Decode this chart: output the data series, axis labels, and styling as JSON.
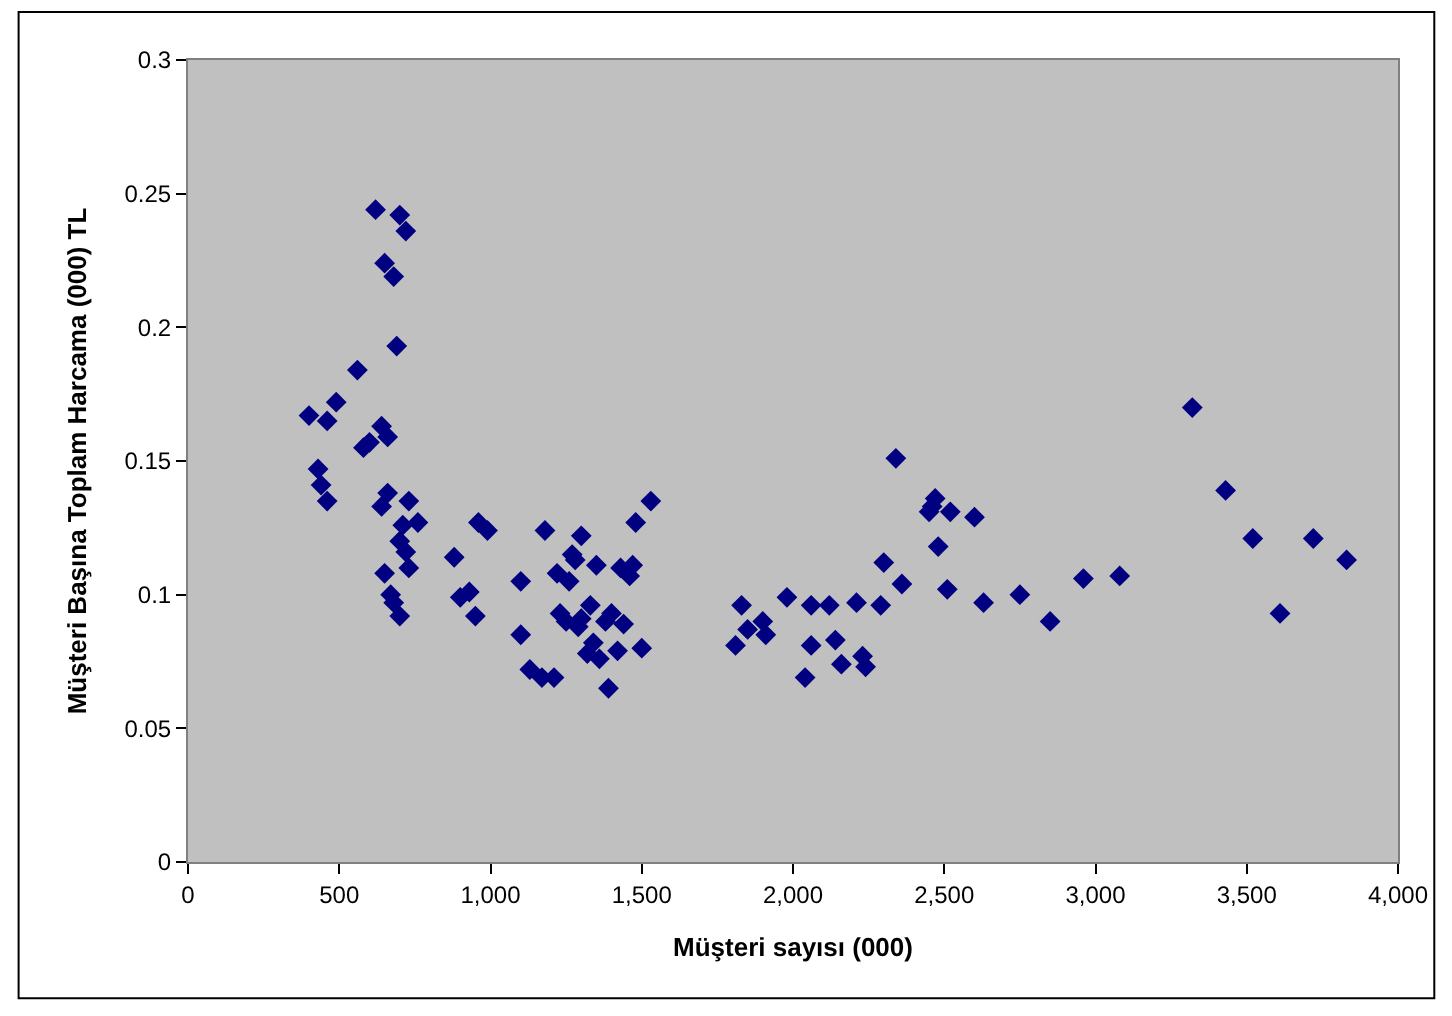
{
  "chart_data": {
    "type": "scatter",
    "xlabel": "Müşteri sayısı (000)",
    "ylabel": "Müşteri Başına Toplam Harcama (000) TL",
    "marker": "diamond",
    "grid": false,
    "xlim": [
      0,
      4000
    ],
    "xticks": [
      0,
      500,
      {
        "value": 1000,
        "label": "1,000"
      },
      {
        "value": 1500,
        "label": "1,500"
      },
      {
        "value": 2000,
        "label": "2,000"
      },
      {
        "value": 2500,
        "label": "2,500"
      },
      {
        "value": 3000,
        "label": "3,000"
      },
      {
        "value": 3500,
        "label": "3,500"
      },
      {
        "value": 4000,
        "label": "4,000"
      }
    ],
    "ylim": [
      0,
      0.3
    ],
    "yticks": [
      0,
      0.05,
      0.1,
      0.15,
      0.2,
      0.25,
      0.3
    ],
    "series": [
      {
        "color": "#000080",
        "x": [
          400,
          430,
          440,
          460,
          460,
          490,
          560,
          580,
          600,
          620,
          640,
          640,
          650,
          660,
          680,
          690,
          700,
          720,
          660,
          650,
          670,
          680,
          700,
          700,
          710,
          720,
          730,
          730,
          760,
          880,
          900,
          930,
          950,
          960,
          990,
          1100,
          1100,
          1130,
          1170,
          1180,
          1210,
          1220,
          1230,
          1250,
          1260,
          1270,
          1280,
          1290,
          1300,
          1300,
          1320,
          1330,
          1340,
          1350,
          1360,
          1380,
          1390,
          1400,
          1420,
          1430,
          1440,
          1460,
          1470,
          1480,
          1500,
          1530,
          1810,
          1830,
          1850,
          1900,
          1910,
          1980,
          2040,
          2060,
          2060,
          2120,
          2140,
          2160,
          2210,
          2230,
          2240,
          2290,
          2300,
          2340,
          2360,
          2450,
          2460,
          2470,
          2480,
          2510,
          2520,
          2600,
          2630,
          2750,
          2850,
          2960,
          3080,
          3320,
          3430,
          3520,
          3610,
          3720,
          3830
        ],
        "values": [
          0.167,
          0.147,
          0.141,
          0.135,
          0.165,
          0.172,
          0.184,
          0.155,
          0.157,
          0.244,
          0.133,
          0.163,
          0.224,
          0.159,
          0.219,
          0.193,
          0.242,
          0.236,
          0.138,
          0.108,
          0.1,
          0.097,
          0.092,
          0.12,
          0.126,
          0.116,
          0.11,
          0.135,
          0.127,
          0.114,
          0.099,
          0.101,
          0.092,
          0.127,
          0.124,
          0.105,
          0.085,
          0.072,
          0.069,
          0.124,
          0.069,
          0.108,
          0.093,
          0.09,
          0.105,
          0.115,
          0.113,
          0.088,
          0.091,
          0.122,
          0.078,
          0.096,
          0.082,
          0.111,
          0.076,
          0.09,
          0.065,
          0.093,
          0.079,
          0.11,
          0.089,
          0.107,
          0.111,
          0.127,
          0.08,
          0.135,
          0.081,
          0.096,
          0.087,
          0.09,
          0.085,
          0.099,
          0.069,
          0.081,
          0.096,
          0.096,
          0.083,
          0.074,
          0.097,
          0.077,
          0.073,
          0.096,
          0.112,
          0.151,
          0.104,
          0.131,
          0.133,
          0.136,
          0.118,
          0.102,
          0.131,
          0.129,
          0.097,
          0.1,
          0.09,
          0.106,
          0.107,
          0.17,
          0.139,
          0.121,
          0.093,
          0.121,
          0.113
        ]
      }
    ]
  }
}
